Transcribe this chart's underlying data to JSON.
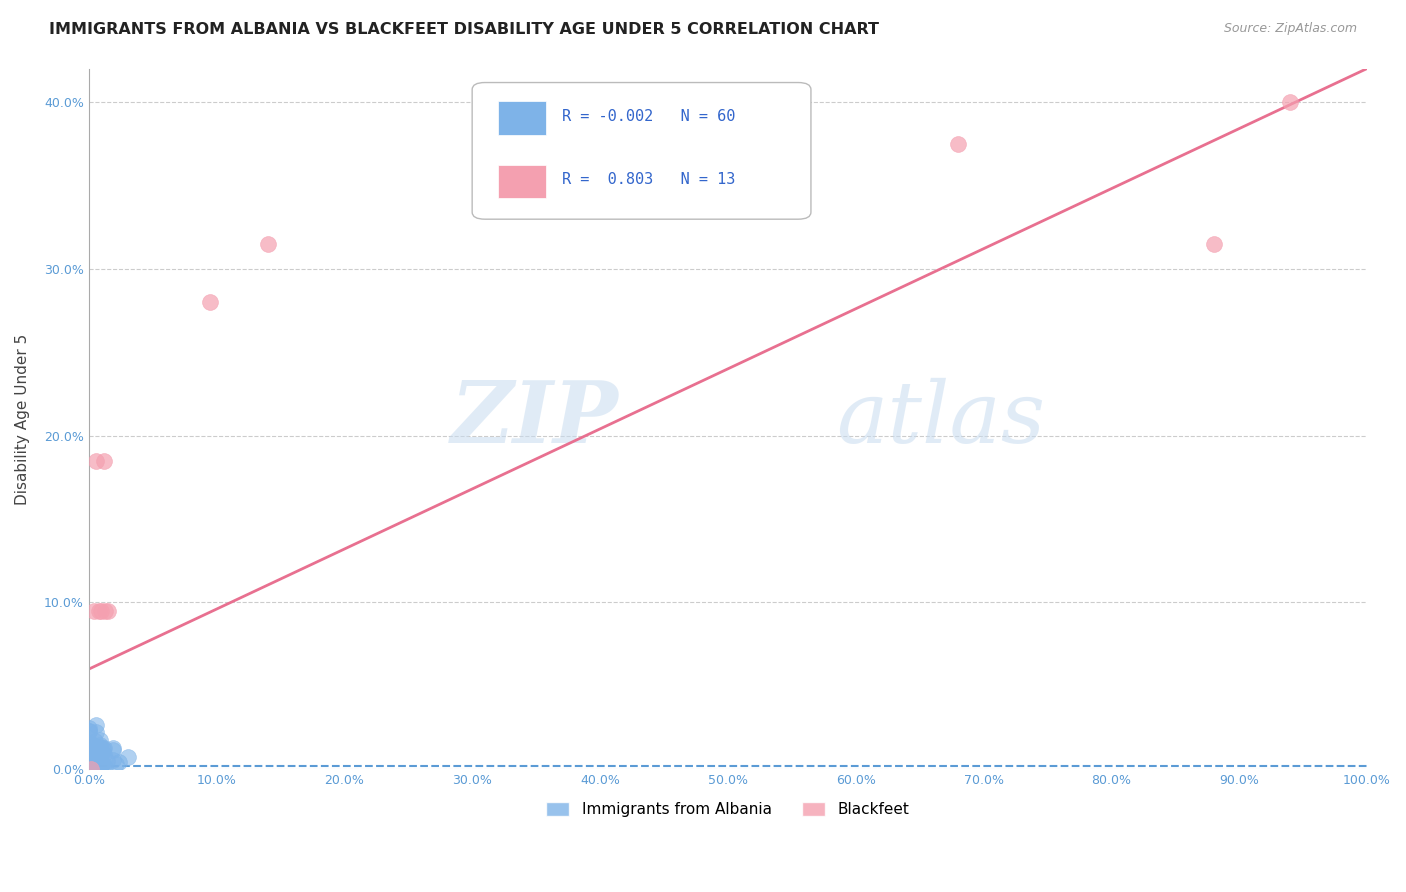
{
  "title": "IMMIGRANTS FROM ALBANIA VS BLACKFEET DISABILITY AGE UNDER 5 CORRELATION CHART",
  "source": "Source: ZipAtlas.com",
  "xlabel_label": "Immigrants from Albania",
  "ylabel_label": "Disability Age Under 5",
  "xlim": [
    0.0,
    1.0
  ],
  "ylim": [
    0.0,
    0.42
  ],
  "xticks": [
    0.0,
    0.1,
    0.2,
    0.3,
    0.4,
    0.5,
    0.6,
    0.7,
    0.8,
    0.9,
    1.0
  ],
  "xtick_labels": [
    "0.0%",
    "10.0%",
    "20.0%",
    "30.0%",
    "40.0%",
    "50.0%",
    "60.0%",
    "70.0%",
    "80.0%",
    "90.0%",
    "100.0%"
  ],
  "yticks": [
    0.0,
    0.1,
    0.2,
    0.3,
    0.4
  ],
  "ytick_labels": [
    "0.0%",
    "10.0%",
    "20.0%",
    "30.0%",
    "40.0%"
  ],
  "albania_R": -0.002,
  "albania_N": 60,
  "blackfeet_R": 0.803,
  "blackfeet_N": 13,
  "albania_color": "#7EB3E8",
  "blackfeet_color": "#F4A0B0",
  "albania_line_color": "#5B9BD5",
  "blackfeet_line_color": "#E87090",
  "watermark_zip": "ZIP",
  "watermark_atlas": "atlas",
  "background_color": "#FFFFFF",
  "grid_color": "#CCCCCC",
  "tick_color": "#5B9BD5",
  "blackfeet_scatter_x": [
    0.002,
    0.004,
    0.006,
    0.008,
    0.012,
    0.015,
    0.095,
    0.14,
    0.68,
    0.88,
    0.94,
    0.013,
    0.01
  ],
  "blackfeet_scatter_y": [
    0.0,
    0.095,
    0.185,
    0.095,
    0.185,
    0.095,
    0.28,
    0.315,
    0.375,
    0.315,
    0.4,
    0.095,
    0.095
  ],
  "albania_line_y": 0.002,
  "blackfeet_line_x": [
    0.0,
    1.0
  ],
  "blackfeet_line_y": [
    0.06,
    0.42
  ]
}
